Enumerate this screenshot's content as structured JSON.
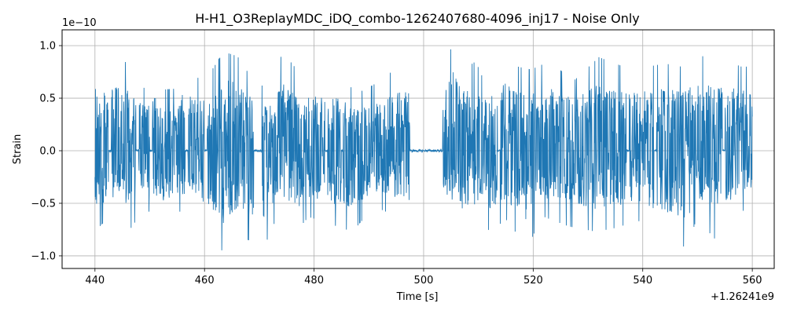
{
  "chart_data": {
    "type": "line",
    "title": "H-H1_O3ReplayMDC_iDQ_combo-1262407680-4096_inj17 - Noise Only",
    "xlabel": "Time [s]",
    "ylabel": "Strain",
    "x_offset_text": "+1.26241e9",
    "y_exponent_text": "1e−10",
    "xlim": [
      434,
      564
    ],
    "ylim": [
      -1.12,
      1.15
    ],
    "x_ticks": [
      440,
      460,
      480,
      500,
      520,
      540,
      560
    ],
    "x_tick_labels": [
      "440",
      "460",
      "480",
      "500",
      "520",
      "540",
      "560"
    ],
    "y_ticks": [
      -1.0,
      -0.5,
      0.0,
      0.5,
      1.0
    ],
    "y_tick_labels": [
      "−1.0",
      "−0.5",
      "0.0",
      "0.5",
      "1.0"
    ],
    "grid": true,
    "line_color": "#1f77b4",
    "series": [
      {
        "x_start": 440,
        "x_end": 560,
        "peaks": {
          "x": [
            440.5,
            441.0,
            442.0,
            444.5,
            445.5,
            446.5,
            448.5,
            449.0,
            451.5,
            452.0,
            454.5,
            455.5,
            457.0,
            459.5,
            461.5,
            463.5,
            466.0,
            468.5,
            471.5,
            474.0,
            475.5,
            477.5,
            480.5,
            484.5,
            488.0,
            492.0,
            495.0,
            504.0,
            505.5,
            507.5,
            509.5,
            511.0,
            515.0,
            516.5,
            519.5,
            522.5,
            525.5,
            527.5,
            532.0,
            538.0,
            544.0,
            547.0,
            551.0,
            556.0,
            558.0
          ],
          "y": [
            0.89,
            0.76,
            0.82,
            0.89,
            0.85,
            0.73,
            0.67,
            0.59,
            0.74,
            0.58,
            0.59,
            0.72,
            0.78,
            0.66,
            0.78,
            0.94,
            0.9,
            0.7,
            0.58,
            0.9,
            0.86,
            0.73,
            0.72,
            0.7,
            0.55,
            0.66,
            0.79,
            0.8,
            1.06,
            0.78,
            0.85,
            0.67,
            0.91,
            0.81,
            0.77,
            0.84,
            0.75,
            0.67,
            0.89,
            0.77,
            0.83,
            0.8,
            0.9,
            0.84,
            0.8
          ],
          "neg_x": [
            440.2,
            441.0,
            442.5,
            443.5,
            445.0,
            446.0,
            449.0,
            451.0,
            452.5,
            455.0,
            458.5,
            461.0,
            463.8,
            466.5,
            468.0,
            471.0,
            473.5,
            476.5,
            479.0,
            481.5,
            487.0,
            491.0,
            496.5,
            499.5,
            504.5,
            506.5,
            509.5,
            512.5,
            515.0,
            519.0,
            521.5,
            526.5,
            531.5,
            535.5,
            539.0,
            543.0,
            546.5,
            548.0,
            550.0,
            553.0,
            556.5,
            559.0
          ],
          "neg_y": [
            -0.8,
            -0.71,
            -0.65,
            -0.62,
            -0.55,
            -0.78,
            -0.55,
            -0.62,
            -0.74,
            -0.57,
            -0.64,
            -0.74,
            -1.01,
            -0.84,
            -0.85,
            -0.9,
            -0.6,
            -0.78,
            -0.63,
            -0.67,
            -0.77,
            -0.53,
            -0.66,
            -0.63,
            -0.58,
            -0.77,
            -0.73,
            -0.76,
            -0.65,
            -0.93,
            -0.62,
            -0.72,
            -0.77,
            -0.73,
            -0.66,
            -0.8,
            -0.86,
            -0.94,
            -0.62,
            -0.84,
            -0.63,
            -0.55
          ]
        },
        "gaps": [
          [
            442.5,
            443.0
          ],
          [
            447.5,
            448.0
          ],
          [
            450.0,
            450.5
          ],
          [
            456.5,
            457.0
          ],
          [
            460.0,
            460.5
          ],
          [
            469.0,
            470.5
          ],
          [
            482.0,
            482.5
          ],
          [
            485.0,
            485.3
          ],
          [
            497.5,
            503.5
          ],
          [
            513.5,
            514.0
          ],
          [
            537.0,
            537.5
          ],
          [
            542.0,
            542.5
          ],
          [
            554.5,
            555.0
          ]
        ]
      }
    ]
  }
}
